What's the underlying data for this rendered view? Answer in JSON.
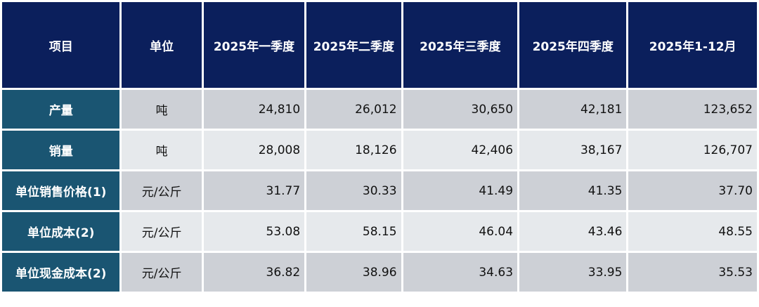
{
  "colors": {
    "header_bg": "#0b1f5c",
    "label_bg": "#1a5572",
    "row_odd_bg": "#cdd0d6",
    "row_even_bg": "#e6e9ec"
  },
  "table": {
    "headers": [
      "项目",
      "单位",
      "2025年一季度",
      "2025年二季度",
      "2025年三季度",
      "2025年四季度",
      "2025年1-12月"
    ],
    "rows": [
      {
        "label": "产量",
        "unit": "吨",
        "values": [
          "24,810",
          "26,012",
          "30,650",
          "42,181",
          "123,652"
        ]
      },
      {
        "label": "销量",
        "unit": "吨",
        "values": [
          "28,008",
          "18,126",
          "42,406",
          "38,167",
          "126,707"
        ]
      },
      {
        "label": "单位销售价格(1)",
        "unit": "元/公斤",
        "values": [
          "31.77",
          "30.33",
          "41.49",
          "41.35",
          "37.70"
        ]
      },
      {
        "label": "单位成本(2)",
        "unit": "元/公斤",
        "values": [
          "53.08",
          "58.15",
          "46.04",
          "43.46",
          "48.55"
        ]
      },
      {
        "label": "单位现金成本(2)",
        "unit": "元/公斤",
        "values": [
          "36.82",
          "38.96",
          "34.63",
          "33.95",
          "35.53"
        ]
      }
    ]
  }
}
